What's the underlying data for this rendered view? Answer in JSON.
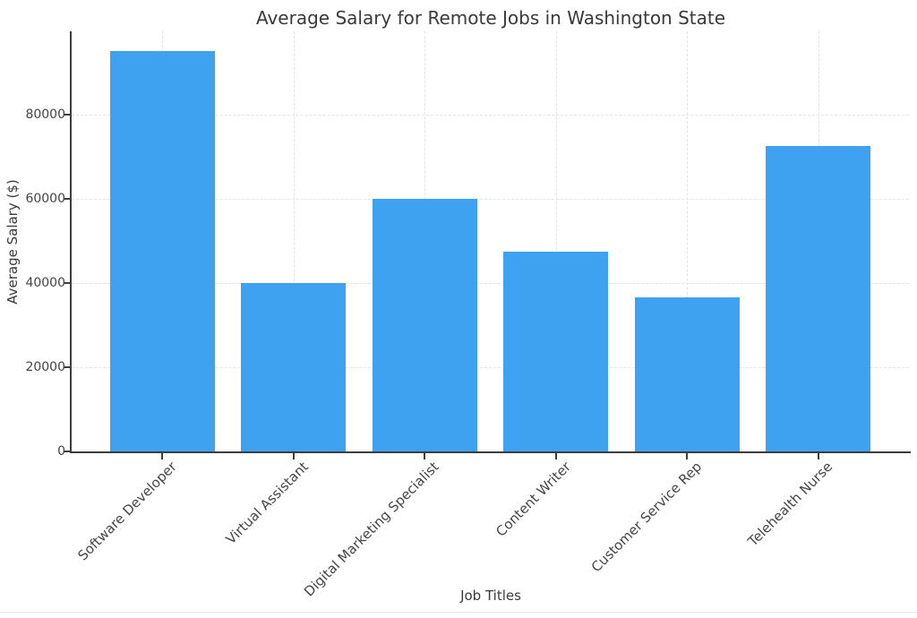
{
  "page": {
    "background": "#ffffff",
    "bottom_rule_color": "#e8e8e8"
  },
  "chart_data": {
    "type": "bar",
    "title": "Average Salary for Remote Jobs in Washington State",
    "xlabel": "Job Titles",
    "ylabel": "Average Salary ($)",
    "categories": [
      "Software Developer",
      "Virtual Assistant",
      "Digital Marketing Specialist",
      "Content Writer",
      "Customer Service Rep",
      "Telehealth Nurse"
    ],
    "values": [
      95000,
      40000,
      60000,
      47500,
      36500,
      72500
    ],
    "yticks": [
      0,
      20000,
      40000,
      60000,
      80000
    ],
    "ylim": [
      0,
      99750
    ],
    "grid": true,
    "legend": false,
    "bar_width_fraction": 0.8,
    "bar_color": "#3fa2f1",
    "grid_color": "#e3e3e3",
    "axis_color": "#3d3d3d",
    "title_color": "#3a3a3a",
    "tick_label_color": "#454545"
  }
}
